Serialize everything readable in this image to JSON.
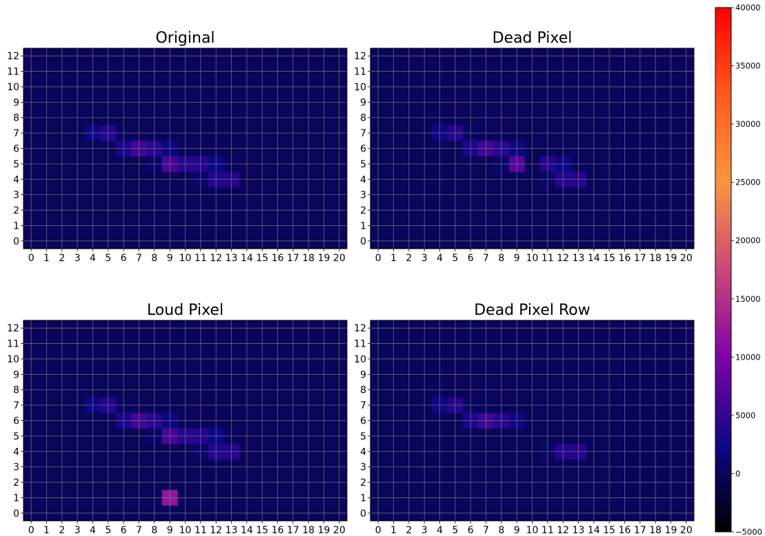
{
  "chart_data": {
    "type": "heatmap",
    "x_ticks": [
      "0",
      "1",
      "2",
      "3",
      "4",
      "5",
      "6",
      "7",
      "8",
      "9",
      "10",
      "11",
      "12",
      "13",
      "14",
      "15",
      "16",
      "17",
      "18",
      "19",
      "20"
    ],
    "y_ticks": [
      "0",
      "1",
      "2",
      "3",
      "4",
      "5",
      "6",
      "7",
      "8",
      "9",
      "10",
      "11",
      "12"
    ],
    "grid": true,
    "colorbar": {
      "min": -5000,
      "max": 40000,
      "ticks": [
        -5000,
        0,
        5000,
        10000,
        15000,
        20000,
        25000,
        30000,
        35000,
        40000
      ],
      "tick_labels": [
        "−5000",
        "0",
        "5000",
        "10000",
        "15000",
        "20000",
        "25000",
        "30000",
        "35000",
        "40000"
      ],
      "colormap": [
        "#000000",
        "#0d0887",
        "#7e03a8",
        "#cc4778",
        "#f89540",
        "#ff5a1e",
        "#ff0000"
      ]
    },
    "panels": [
      {
        "title": "Original",
        "base_value": 0,
        "cells": [
          {
            "x": 4,
            "y": 7,
            "v": 2500
          },
          {
            "x": 5,
            "y": 7,
            "v": 4000
          },
          {
            "x": 6,
            "y": 7,
            "v": 400
          },
          {
            "x": 6,
            "y": 6,
            "v": 3500
          },
          {
            "x": 7,
            "y": 6,
            "v": 6000
          },
          {
            "x": 8,
            "y": 6,
            "v": 4200
          },
          {
            "x": 9,
            "y": 6,
            "v": 2200
          },
          {
            "x": 8,
            "y": 5,
            "v": 800
          },
          {
            "x": 9,
            "y": 5,
            "v": 6500
          },
          {
            "x": 10,
            "y": 5,
            "v": 4200
          },
          {
            "x": 11,
            "y": 5,
            "v": 4000
          },
          {
            "x": 12,
            "y": 5,
            "v": 2500
          },
          {
            "x": 13,
            "y": 5,
            "v": 400
          },
          {
            "x": 11,
            "y": 4,
            "v": 900
          },
          {
            "x": 12,
            "y": 4,
            "v": 4000
          },
          {
            "x": 13,
            "y": 4,
            "v": 4000
          }
        ]
      },
      {
        "title": "Dead Pixel",
        "base_value": 0,
        "cells": [
          {
            "x": 4,
            "y": 7,
            "v": 2500
          },
          {
            "x": 5,
            "y": 7,
            "v": 4000
          },
          {
            "x": 6,
            "y": 7,
            "v": 400
          },
          {
            "x": 6,
            "y": 6,
            "v": 3500
          },
          {
            "x": 7,
            "y": 6,
            "v": 6000
          },
          {
            "x": 8,
            "y": 6,
            "v": 4200
          },
          {
            "x": 9,
            "y": 6,
            "v": 2200
          },
          {
            "x": 8,
            "y": 5,
            "v": 800
          },
          {
            "x": 9,
            "y": 5,
            "v": 7500
          },
          {
            "x": 11,
            "y": 5,
            "v": 4000
          },
          {
            "x": 12,
            "y": 5,
            "v": 2500
          },
          {
            "x": 13,
            "y": 5,
            "v": 400
          },
          {
            "x": 11,
            "y": 4,
            "v": 900
          },
          {
            "x": 12,
            "y": 4,
            "v": 4000
          },
          {
            "x": 13,
            "y": 4,
            "v": 4000
          }
        ]
      },
      {
        "title": "Loud Pixel",
        "base_value": 0,
        "cells": [
          {
            "x": 4,
            "y": 7,
            "v": 2500
          },
          {
            "x": 5,
            "y": 7,
            "v": 4000
          },
          {
            "x": 6,
            "y": 7,
            "v": 400
          },
          {
            "x": 6,
            "y": 6,
            "v": 3500
          },
          {
            "x": 7,
            "y": 6,
            "v": 6000
          },
          {
            "x": 8,
            "y": 6,
            "v": 4200
          },
          {
            "x": 9,
            "y": 6,
            "v": 2200
          },
          {
            "x": 8,
            "y": 5,
            "v": 800
          },
          {
            "x": 9,
            "y": 5,
            "v": 6500
          },
          {
            "x": 10,
            "y": 5,
            "v": 4200
          },
          {
            "x": 11,
            "y": 5,
            "v": 4000
          },
          {
            "x": 12,
            "y": 5,
            "v": 2500
          },
          {
            "x": 13,
            "y": 5,
            "v": 400
          },
          {
            "x": 11,
            "y": 4,
            "v": 900
          },
          {
            "x": 12,
            "y": 4,
            "v": 4000
          },
          {
            "x": 13,
            "y": 4,
            "v": 4000
          },
          {
            "x": 9,
            "y": 1,
            "v": 12000
          }
        ]
      },
      {
        "title": "Dead Pixel Row",
        "base_value": 0,
        "cells": [
          {
            "x": 4,
            "y": 7,
            "v": 2500
          },
          {
            "x": 5,
            "y": 7,
            "v": 4000
          },
          {
            "x": 6,
            "y": 7,
            "v": 400
          },
          {
            "x": 6,
            "y": 6,
            "v": 3500
          },
          {
            "x": 7,
            "y": 6,
            "v": 6000
          },
          {
            "x": 8,
            "y": 6,
            "v": 4200
          },
          {
            "x": 9,
            "y": 6,
            "v": 2200
          },
          {
            "x": 11,
            "y": 4,
            "v": 900
          },
          {
            "x": 12,
            "y": 4,
            "v": 4000
          },
          {
            "x": 13,
            "y": 4,
            "v": 4000
          }
        ]
      }
    ]
  }
}
